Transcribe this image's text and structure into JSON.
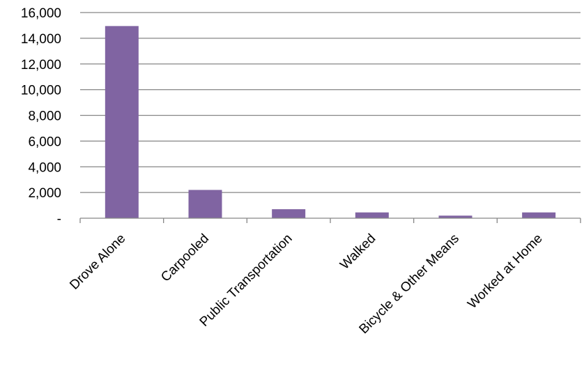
{
  "chart_data": {
    "type": "bar",
    "title": "",
    "xlabel": "",
    "ylabel": "",
    "categories": [
      "Drove Alone",
      "Carpooled",
      "Public Transportation",
      "Walked",
      "Bicycle & Other Means",
      "Worked at Home"
    ],
    "values": [
      14950,
      2200,
      700,
      450,
      200,
      450
    ],
    "ylim": [
      0,
      16000
    ],
    "yticks": [
      0,
      2000,
      4000,
      6000,
      8000,
      10000,
      12000,
      14000,
      16000
    ],
    "ytick_labels": [
      "-",
      "2,000",
      "4,000",
      "6,000",
      "8,000",
      "10,000",
      "12,000",
      "14,000",
      "16,000"
    ],
    "grid": true,
    "legend": "none",
    "colors": {
      "bar": "#8064A2",
      "grid": "#868686",
      "axis": "#868686"
    }
  }
}
